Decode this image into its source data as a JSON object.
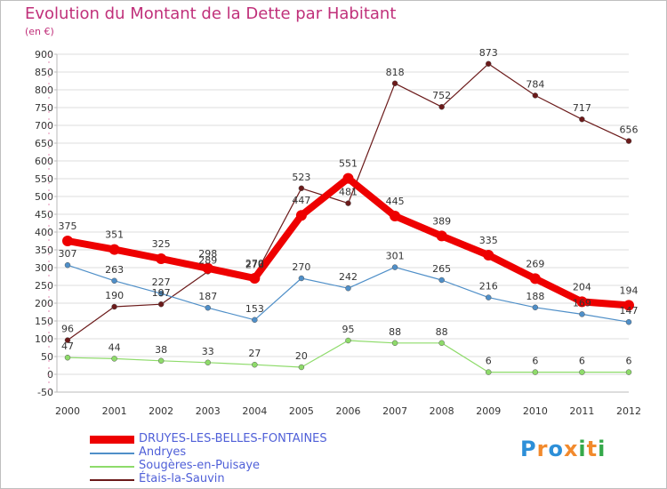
{
  "title": "Evolution du Montant de la Dette par Habitant",
  "subtitle": "(en €)",
  "brand": {
    "text": "Proxiti",
    "letters": [
      "P",
      "r",
      "o",
      "x",
      "i",
      "t",
      "i"
    ],
    "colors": [
      "#2d8fd8",
      "#f28a2d",
      "#2d8fd8",
      "#f28a2d",
      "#35a94a",
      "#f28a2d",
      "#35a94a"
    ]
  },
  "chart_data": {
    "type": "line",
    "title": "Evolution du Montant de la Dette par Habitant",
    "subtitle": "(en €)",
    "xlabel": "",
    "ylabel": "",
    "x": [
      "2000",
      "2001",
      "2002",
      "2003",
      "2004",
      "2005",
      "2006",
      "2007",
      "2008",
      "2009",
      "2010",
      "2011",
      "2012"
    ],
    "ylim": [
      -50,
      900
    ],
    "yticks": [
      -50,
      0,
      50,
      100,
      150,
      200,
      250,
      300,
      350,
      400,
      450,
      500,
      550,
      600,
      650,
      700,
      750,
      800,
      850,
      900
    ],
    "grid": "horizontal",
    "legend_position": "bottom-left",
    "series": [
      {
        "name": "DRUYES-LES-BELLES-FONTAINES",
        "color": "#ee0000",
        "values": [
          375,
          351,
          325,
          298,
          270,
          447,
          551,
          445,
          389,
          335,
          269,
          204,
          194
        ]
      },
      {
        "name": "Andryes",
        "color": "#4f8fc8",
        "values": [
          307,
          263,
          227,
          187,
          153,
          270,
          242,
          301,
          265,
          216,
          188,
          169,
          147
        ]
      },
      {
        "name": "Sougères-en-Puisaye",
        "color": "#8edb6a",
        "values": [
          47,
          44,
          38,
          33,
          27,
          20,
          95,
          88,
          88,
          6,
          6,
          6,
          6
        ]
      },
      {
        "name": "Étais-la-Sauvin",
        "color": "#6b1a1a",
        "values": [
          96,
          190,
          197,
          289,
          276,
          523,
          481,
          818,
          752,
          873,
          784,
          717,
          656
        ]
      }
    ]
  }
}
